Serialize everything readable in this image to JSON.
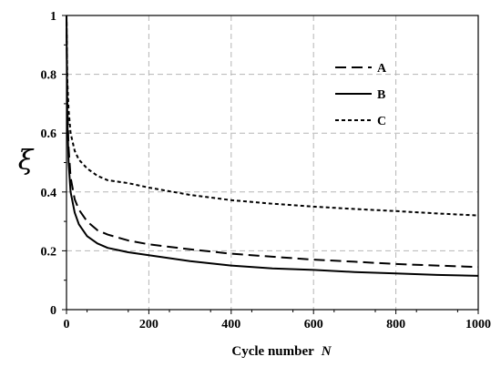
{
  "chart_data": {
    "type": "line",
    "xlabel": "Cycle number",
    "xlabel_var": "N",
    "ylabel": "ξ",
    "xlim": [
      0,
      1000
    ],
    "ylim": [
      0,
      1
    ],
    "xticks": [
      0,
      200,
      400,
      600,
      800,
      1000
    ],
    "yticks": [
      0,
      0.2,
      0.4,
      0.6,
      0.8,
      1
    ],
    "ytick_labels": [
      "0",
      "0.2",
      "0.4",
      "0.6",
      "0.8",
      "1"
    ],
    "grid": true,
    "legend_position": "top-right",
    "series": [
      {
        "name": "A",
        "style": "long-dash",
        "x": [
          0,
          2,
          5,
          10,
          20,
          30,
          50,
          75,
          100,
          150,
          200,
          300,
          400,
          500,
          600,
          700,
          800,
          900,
          1000
        ],
        "y": [
          1.0,
          0.7,
          0.55,
          0.45,
          0.375,
          0.34,
          0.3,
          0.27,
          0.255,
          0.235,
          0.222,
          0.205,
          0.19,
          0.18,
          0.17,
          0.163,
          0.155,
          0.15,
          0.145
        ]
      },
      {
        "name": "B",
        "style": "solid",
        "x": [
          0,
          2,
          5,
          10,
          20,
          30,
          50,
          75,
          100,
          150,
          200,
          300,
          400,
          500,
          600,
          700,
          800,
          900,
          1000
        ],
        "y": [
          1.0,
          0.65,
          0.5,
          0.4,
          0.33,
          0.29,
          0.25,
          0.225,
          0.21,
          0.195,
          0.185,
          0.165,
          0.15,
          0.14,
          0.135,
          0.128,
          0.123,
          0.118,
          0.115
        ]
      },
      {
        "name": "C",
        "style": "short-dash",
        "x": [
          0,
          2,
          5,
          10,
          20,
          30,
          50,
          75,
          100,
          150,
          200,
          300,
          400,
          500,
          600,
          700,
          800,
          900,
          1000
        ],
        "y": [
          1.0,
          0.78,
          0.68,
          0.6,
          0.54,
          0.51,
          0.48,
          0.455,
          0.44,
          0.43,
          0.415,
          0.39,
          0.372,
          0.36,
          0.35,
          0.342,
          0.335,
          0.327,
          0.32
        ]
      }
    ]
  }
}
